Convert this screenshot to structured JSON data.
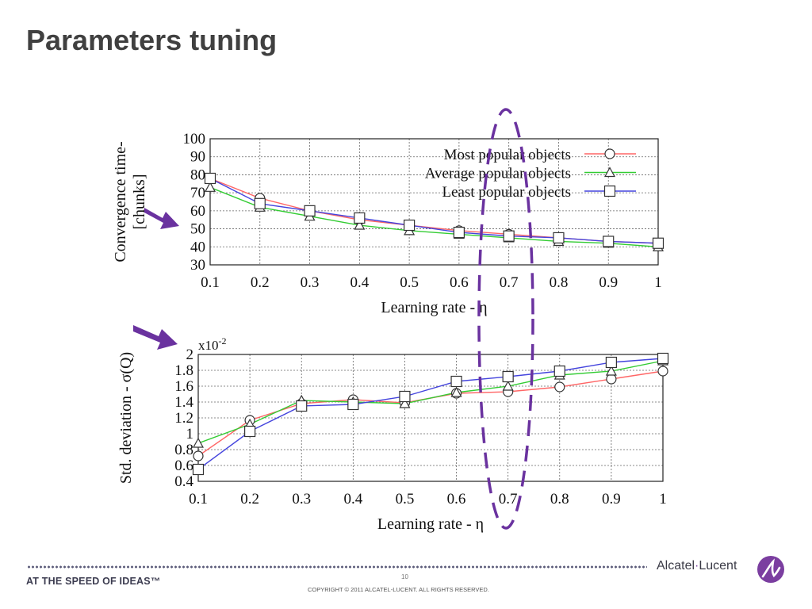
{
  "slide": {
    "title": "Parameters tuning",
    "footer_slogan": "AT THE SPEED OF IDEAS™",
    "page_number": "10",
    "copyright": "COPYRIGHT © 2011 ALCATEL-LUCENT.  ALL RIGHTS RESERVED.",
    "brand_left": "Alcatel",
    "brand_dot": "·",
    "brand_right": "Lucent",
    "colors": {
      "title": "#404040",
      "annotation": "#6a329f",
      "brand": "#7b3ea0"
    }
  },
  "chart_data": [
    {
      "type": "line",
      "ylabel_line1": "Convergence time-",
      "ylabel_line2": "[chunks]",
      "xlabel": "Learning rate - η",
      "x": [
        0.1,
        0.2,
        0.3,
        0.4,
        0.5,
        0.6,
        0.7,
        0.8,
        0.9,
        1
      ],
      "x_tick_labels": [
        "0.1",
        "0.2",
        "0.3",
        "0.4",
        "0.5",
        "0.6",
        "0.7",
        "0.8",
        "0.9",
        "1"
      ],
      "xlim": [
        0.1,
        1
      ],
      "ylim": [
        30,
        100
      ],
      "y_ticks": [
        30,
        40,
        50,
        60,
        70,
        80,
        90,
        100
      ],
      "y_tick_labels": [
        "30",
        "40",
        "50",
        "60",
        "70",
        "80",
        "90",
        "100"
      ],
      "grid": true,
      "legend_position": "top-right",
      "series": [
        {
          "name": "Most popular objects",
          "color": "#ff6666",
          "marker": "circle",
          "values": [
            78,
            67,
            60,
            55,
            52,
            49,
            47,
            45,
            43,
            42
          ]
        },
        {
          "name": "Average popular objects",
          "color": "#33cc33",
          "marker": "triangle",
          "values": [
            73,
            62,
            57,
            52,
            49,
            47,
            45,
            43,
            42,
            40
          ]
        },
        {
          "name": "Least popular objects",
          "color": "#4444dd",
          "marker": "square",
          "values": [
            78,
            64,
            60,
            56,
            52,
            48,
            46,
            45,
            43,
            42
          ]
        }
      ]
    },
    {
      "type": "line",
      "ylabel": "Std. deviation - σ(Q)",
      "xlabel": "Learning rate - η",
      "y_multiplier_base": "x10",
      "y_multiplier_exp": "-2",
      "x": [
        0.1,
        0.2,
        0.3,
        0.4,
        0.5,
        0.6,
        0.7,
        0.8,
        0.9,
        1
      ],
      "x_tick_labels": [
        "0.1",
        "0.2",
        "0.3",
        "0.4",
        "0.5",
        "0.6",
        "0.7",
        "0.8",
        "0.9",
        "1"
      ],
      "xlim": [
        0.1,
        1
      ],
      "ylim": [
        0.4,
        2
      ],
      "y_ticks": [
        0.4,
        0.6,
        0.8,
        1.0,
        1.2,
        1.4,
        1.6,
        1.8,
        2.0
      ],
      "y_tick_labels": [
        "0.4",
        "0.6",
        "0.8",
        "1",
        "1.2",
        "1.4",
        "1.6",
        "1.8",
        "2"
      ],
      "grid": true,
      "series": [
        {
          "name": "Most popular objects",
          "color": "#ff6666",
          "marker": "circle",
          "values": [
            0.72,
            1.17,
            1.38,
            1.43,
            1.39,
            1.51,
            1.53,
            1.59,
            1.69,
            1.79
          ]
        },
        {
          "name": "Average popular objects",
          "color": "#33cc33",
          "marker": "triangle",
          "values": [
            0.88,
            1.12,
            1.42,
            1.4,
            1.38,
            1.52,
            1.6,
            1.74,
            1.79,
            1.92
          ]
        },
        {
          "name": "Least popular objects",
          "color": "#4444dd",
          "marker": "square",
          "values": [
            0.55,
            1.03,
            1.35,
            1.37,
            1.47,
            1.66,
            1.72,
            1.79,
            1.9,
            1.95
          ]
        }
      ]
    }
  ]
}
